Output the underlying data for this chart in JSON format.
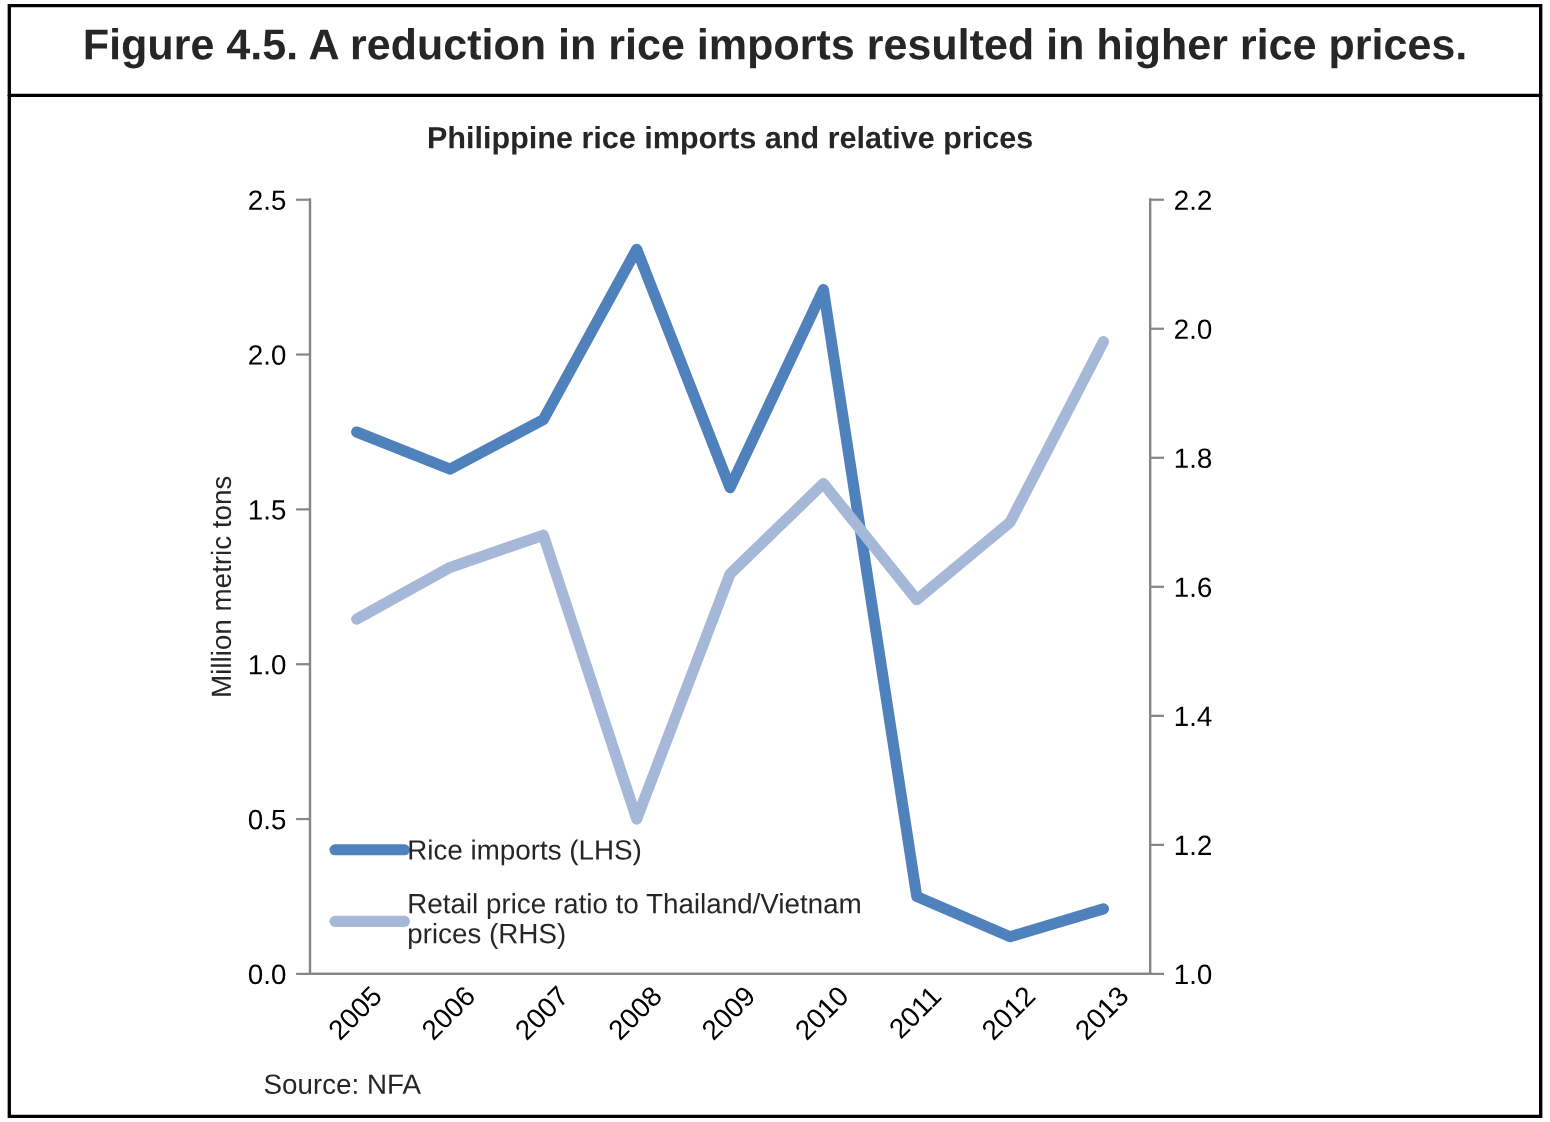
{
  "chart_data": {
    "type": "line",
    "title": "Figure 4.5. A reduction in rice imports resulted in higher rice prices.",
    "subtitle": "Philippine rice imports and relative prices",
    "ylabel": "Million metric tons",
    "categories": [
      "2005",
      "2006",
      "2007",
      "2008",
      "2009",
      "2010",
      "2011",
      "2012",
      "2013"
    ],
    "series": [
      {
        "name": "Rice imports (LHS)",
        "color": "#4f81bd",
        "values": [
          1.75,
          1.63,
          1.79,
          2.34,
          1.57,
          2.21,
          0.25,
          0.12,
          0.21
        ]
      },
      {
        "name": "Retail price ratio to Thailand/Vietnam prices (RHS)",
        "color": "#a6b8d8",
        "axis": "y2",
        "values": [
          1.55,
          1.63,
          1.68,
          1.24,
          1.62,
          1.76,
          1.58,
          1.7,
          1.98
        ]
      }
    ],
    "ylim": [
      0,
      2.5
    ],
    "yticks": [
      {
        "value": 0,
        "label": "0.0"
      },
      0.5,
      {
        "value": 1,
        "label": "1.0"
      },
      1.5,
      {
        "value": 2,
        "label": "2.0"
      },
      2.5
    ],
    "y2lim": [
      1.0,
      2.2
    ],
    "y2ticks": [
      {
        "value": 1,
        "label": "1.0"
      },
      1.2,
      1.4,
      1.6,
      1.8,
      {
        "value": 2,
        "label": "2.0"
      },
      2.2
    ],
    "legend": "bottom left",
    "grid": false,
    "annotations": [
      "Source: NFA"
    ]
  }
}
